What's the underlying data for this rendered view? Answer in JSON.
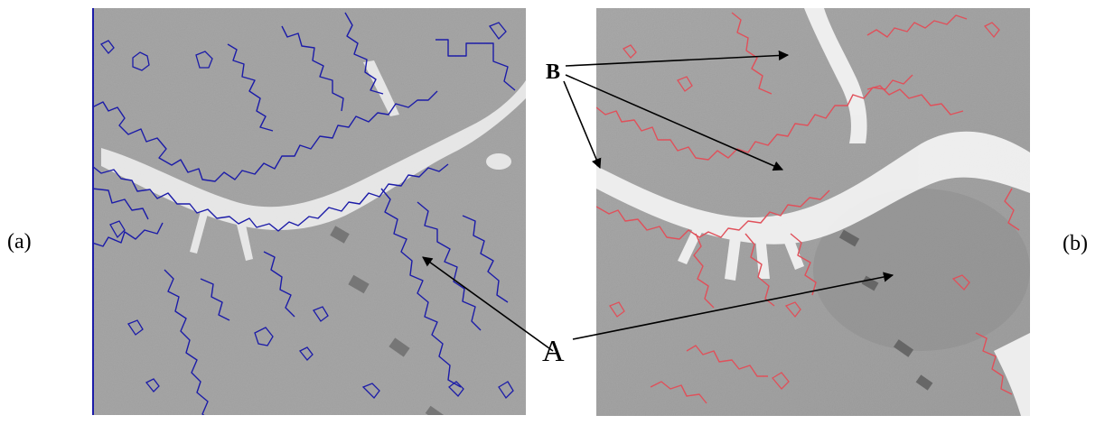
{
  "panels": {
    "left_label": "(a)",
    "right_label": "(b)"
  },
  "annotations": {
    "label_a": "A",
    "label_b": "B"
  },
  "colors": {
    "terrain_gray": "#a5a5a5",
    "left_contour": "#1c1ca8",
    "right_contour": "#e0505a",
    "highlight": "#f4f4f4",
    "arrow": "#000000"
  }
}
